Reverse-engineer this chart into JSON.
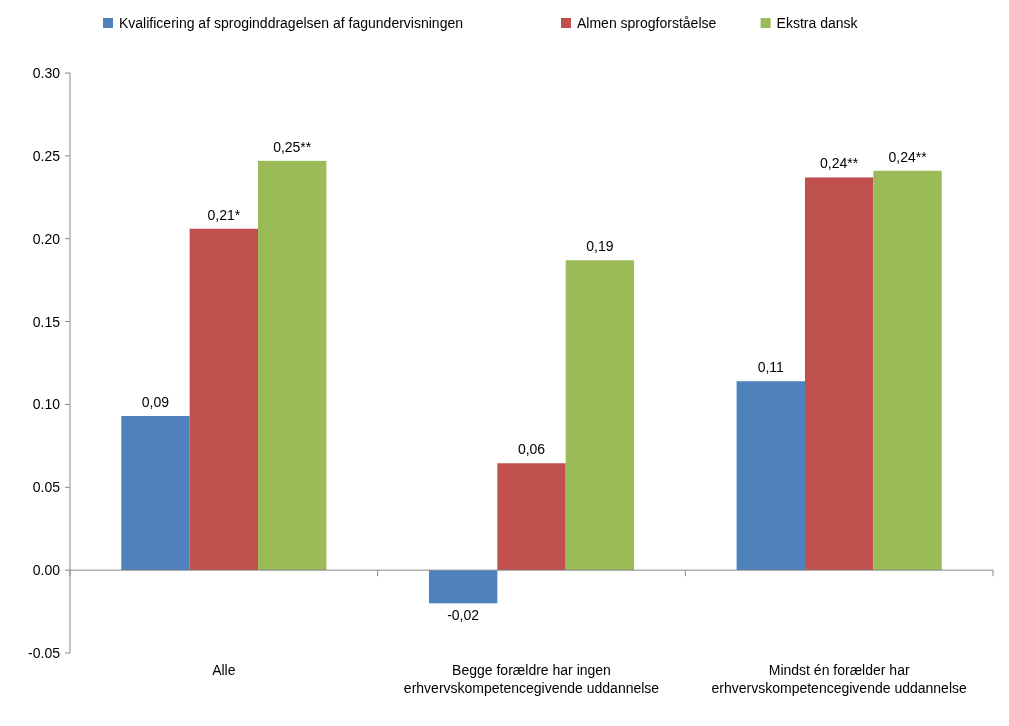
{
  "chart_data": {
    "type": "bar",
    "categories": [
      "Alle",
      "Begge forældre har ingen erhvervskompetencegivende uddannelse",
      "Mindst én forælder har erhvervskompetencegivende uddannelse"
    ],
    "series": [
      {
        "name": "Kvalificering af sproginddragelsen af fagundervisningen",
        "color": "#4f81bd",
        "values": [
          0.093,
          -0.02,
          0.114
        ],
        "value_labels": [
          "0,09",
          "-0,02",
          "0,11"
        ]
      },
      {
        "name": "Almen sprogforståelse",
        "color": "#c0504d",
        "values": [
          0.206,
          0.0645,
          0.237
        ],
        "value_labels": [
          "0,21*",
          "0,06",
          "0,24**"
        ]
      },
      {
        "name": "Ekstra dansk",
        "color": "#9bbb59",
        "values": [
          0.247,
          0.187,
          0.241
        ],
        "value_labels": [
          "0,25**",
          "0,19",
          "0,24**"
        ]
      }
    ],
    "ylim": [
      -0.05,
      0.3
    ],
    "yticks": [
      {
        "value": -0.05,
        "label": "-0.05"
      },
      {
        "value": 0,
        "label": "0.00"
      },
      {
        "value": 0.05,
        "label": "0.05"
      },
      {
        "value": 0.1,
        "label": "0.10"
      },
      {
        "value": 0.15,
        "label": "0.15"
      },
      {
        "value": 0.2,
        "label": "0.20"
      },
      {
        "value": 0.25,
        "label": "0.25"
      },
      {
        "value": 0.3,
        "label": "0.30"
      }
    ],
    "legend": "top"
  }
}
